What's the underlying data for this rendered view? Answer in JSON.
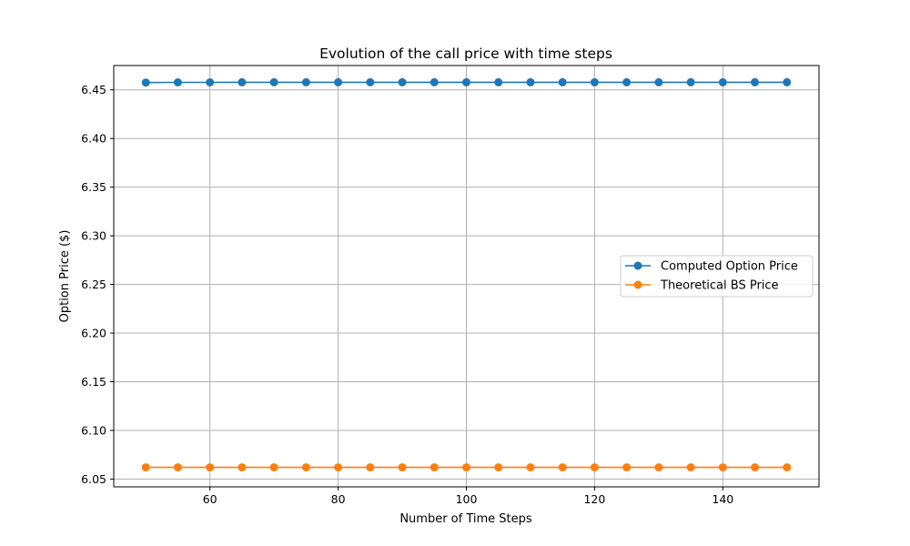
{
  "chart_data": {
    "type": "line",
    "title": "Evolution of the call price with time steps",
    "xlabel": "Number of Time Steps",
    "ylabel": "Option Price ($)",
    "x": [
      50,
      55,
      60,
      65,
      70,
      75,
      80,
      85,
      90,
      95,
      100,
      105,
      110,
      115,
      120,
      125,
      130,
      135,
      140,
      145,
      150
    ],
    "xlim": [
      45,
      155
    ],
    "ylim": [
      6.042,
      6.475
    ],
    "xticks": [
      60,
      80,
      100,
      120,
      140
    ],
    "xtick_labels": [
      "60",
      "80",
      "100",
      "120",
      "140"
    ],
    "yticks": [
      6.05,
      6.1,
      6.15,
      6.2,
      6.25,
      6.3,
      6.35,
      6.4,
      6.45
    ],
    "ytick_labels": [
      "6.05",
      "6.10",
      "6.15",
      "6.20",
      "6.25",
      "6.30",
      "6.35",
      "6.40",
      "6.45"
    ],
    "grid": true,
    "legend_position": "center-right",
    "series": [
      {
        "name": "Computed Option Price",
        "color": "#1f77b4",
        "marker": "circle",
        "values": [
          6.4575,
          6.4577,
          6.4577,
          6.4578,
          6.4578,
          6.4578,
          6.4578,
          6.4578,
          6.4578,
          6.4578,
          6.4578,
          6.4578,
          6.4578,
          6.4578,
          6.4578,
          6.4578,
          6.4578,
          6.4578,
          6.4578,
          6.4578,
          6.4578
        ]
      },
      {
        "name": "Theoretical BS Price",
        "color": "#ff7f0e",
        "marker": "circle",
        "values": [
          6.062,
          6.062,
          6.062,
          6.062,
          6.062,
          6.062,
          6.062,
          6.062,
          6.062,
          6.062,
          6.062,
          6.062,
          6.062,
          6.062,
          6.062,
          6.062,
          6.062,
          6.062,
          6.062,
          6.062,
          6.062
        ]
      }
    ]
  }
}
